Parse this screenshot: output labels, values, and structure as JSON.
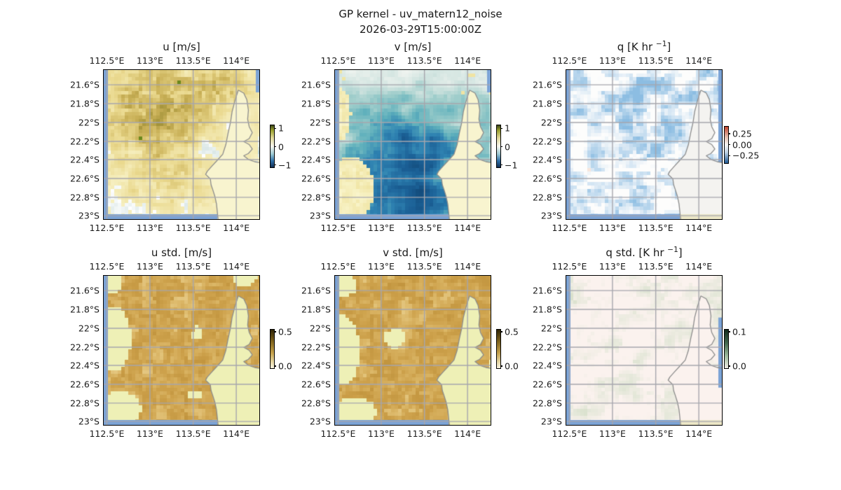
{
  "figure": {
    "suptitle_line1": "GP kernel - uv_matern12_noise",
    "suptitle_line2": "2026-03-29T15:00:00Z",
    "background": "#ffffff",
    "colors": {
      "grid": "#a6a6ad",
      "coast": "#8c8c8c",
      "sea_edge": "#7ba3d6",
      "border": "#000000",
      "text": "#1a1a1a"
    }
  },
  "chart_data": {
    "type": "heatmap",
    "layout": "2 rows x 3 columns of lat/lon map panels, each with small vertical colorbar",
    "x_ticks": [
      "112.5°E",
      "113°E",
      "113.5°E",
      "114°E"
    ],
    "y_ticks": [
      "21.6°S",
      "21.8°S",
      "22°S",
      "22.2°S",
      "22.4°S",
      "22.6°S",
      "22.8°S",
      "23°S"
    ],
    "lon_range_deg_e": [
      112.47,
      114.27
    ],
    "lat_range_deg_s": [
      21.44,
      23.03
    ],
    "grid": true,
    "coastline": "Exmouth peninsula / NW Australia coast, gray line; land masked flat color east of coast",
    "colorbar_gradients": {
      "uv": [
        [
          0,
          "#3a451a"
        ],
        [
          0.12,
          "#9aa02e"
        ],
        [
          0.3,
          "#e0d898"
        ],
        [
          0.5,
          "#f8f7ef"
        ],
        [
          0.68,
          "#9fcbd4"
        ],
        [
          0.85,
          "#2e6fa8"
        ],
        [
          1,
          "#122f55"
        ]
      ],
      "q": [
        [
          0,
          "#c0442e"
        ],
        [
          0.3,
          "#e8c4b4"
        ],
        [
          0.5,
          "#f7f6f4"
        ],
        [
          0.7,
          "#c2d4e6"
        ],
        [
          1,
          "#1f5a96"
        ]
      ],
      "std_uv": [
        [
          0,
          "#2f2506"
        ],
        [
          0.3,
          "#7d621c"
        ],
        [
          0.6,
          "#c4a04a"
        ],
        [
          0.85,
          "#e7d9a8"
        ],
        [
          1,
          "#f7f3e2"
        ]
      ],
      "std_q": [
        [
          0,
          "#10291c"
        ],
        [
          0.35,
          "#44694f"
        ],
        [
          0.7,
          "#a3bfa0"
        ],
        [
          1,
          "#f0ece4"
        ]
      ]
    },
    "panels": [
      {
        "id": "u",
        "title_pre": "u [m/s]",
        "title_sup": "",
        "title_post": "",
        "style": "u",
        "land_color": "#f8f4cf",
        "field_note": "pale-yellow field with olive/tan positive patches concentrated NW of center, few dark green cells, scattered pale blue-gray cells; range about -1 to 1 m/s",
        "cbar": {
          "gradient": "uv",
          "ticks": [
            {
              "label": "1",
              "t": 0.08
            },
            {
              "label": "0",
              "t": 0.52
            },
            {
              "label": "−1",
              "t": 0.95
            }
          ]
        }
      },
      {
        "id": "v",
        "title_pre": "v [m/s]",
        "title_sup": "",
        "title_post": "",
        "style": "v",
        "land_color": "#f8f4cf",
        "field_note": "teal/blue negative field, darkest blue blob bottom-center, lighter teal to north; pale-yellow positive pockets lower-left and scattered top-right; range about -1 to 1 m/s",
        "cbar": {
          "gradient": "uv",
          "ticks": [
            {
              "label": "1",
              "t": 0.08
            },
            {
              "label": "0",
              "t": 0.52
            },
            {
              "label": "−1",
              "t": 0.95
            }
          ]
        }
      },
      {
        "id": "q",
        "title_pre": "q [K hr ",
        "title_sup": "−1",
        "title_post": "]",
        "style": "q",
        "land_color": "#f4f3f0",
        "field_note": "near-white field with faint light-blue (negative) streaks, strongest along northern band; range about -0.25 to 0.25 K/hr",
        "cbar": {
          "gradient": "q",
          "ticks": [
            {
              "label": "0.25",
              "t": 0.2
            },
            {
              "label": "0.00",
              "t": 0.5
            },
            {
              "label": "−0.25",
              "t": 0.8
            }
          ]
        }
      },
      {
        "id": "u_std",
        "title_pre": "u std. [m/s]",
        "title_sup": "",
        "title_post": "",
        "style": "ustd",
        "land_color": "#eef0b6",
        "field_note": "tan/dark-khaki std field ~0.4 with pale yellow-green low-std patches at left edge, corners and over land; range 0.0 to 0.5",
        "cbar": {
          "gradient": "std_uv",
          "ticks": [
            {
              "label": "0.5",
              "t": 0.06
            },
            {
              "label": "0.0",
              "t": 0.95
            }
          ]
        }
      },
      {
        "id": "v_std",
        "title_pre": "v std. [m/s]",
        "title_sup": "",
        "title_post": "",
        "style": "vstd",
        "land_color": "#eef0b6",
        "field_note": "tan/dark-khaki std field ~0.4 with pale yellow-green low-std patches along left side and over land; range 0.0 to 0.5",
        "cbar": {
          "gradient": "std_uv",
          "ticks": [
            {
              "label": "0.5",
              "t": 0.06
            },
            {
              "label": "0.0",
              "t": 0.95
            }
          ]
        }
      },
      {
        "id": "q_std",
        "title_pre": "q std. [K hr ",
        "title_sup": "−1",
        "title_post": "]",
        "style": "qstd",
        "land_color": "#fbf2ee",
        "field_note": "very light pink-white std field with faint sage-green diagonal streaks; range 0.0 to 0.1",
        "cbar": {
          "gradient": "std_q",
          "ticks": [
            {
              "label": "0.1",
              "t": 0.06
            },
            {
              "label": "0.0",
              "t": 0.95
            }
          ]
        }
      }
    ]
  }
}
